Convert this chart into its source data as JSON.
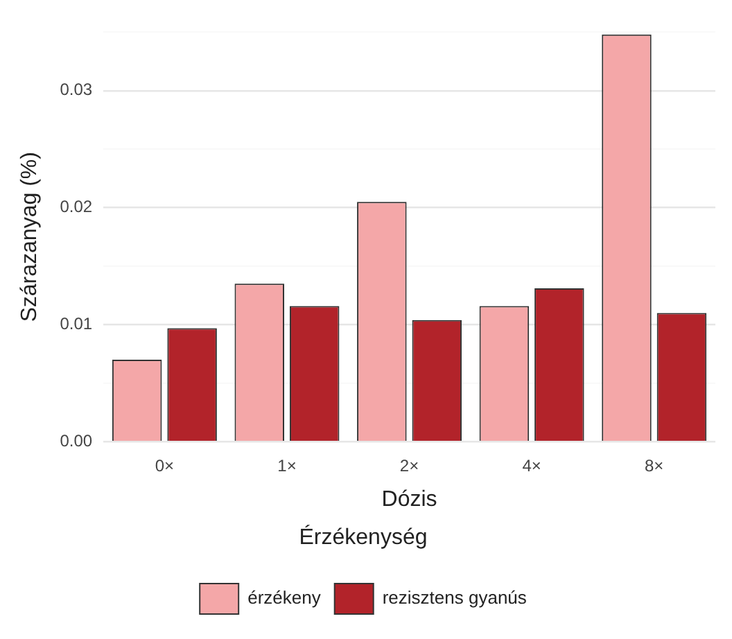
{
  "chart_data": {
    "type": "bar",
    "xlabel": "Dózis",
    "ylabel": "Szárazanyag (%)",
    "legend_title": "Érzékenység",
    "categories": [
      "0×",
      "1×",
      "2×",
      "4×",
      "8×"
    ],
    "series": [
      {
        "name": "érzékeny",
        "color": "#f4a7a8",
        "values": [
          0.007,
          0.0135,
          0.0205,
          0.0116,
          0.0348
        ]
      },
      {
        "name": "rezisztens gyanús",
        "color": "#b2232a",
        "values": [
          0.0097,
          0.0116,
          0.0104,
          0.0131,
          0.011
        ]
      }
    ],
    "ylim": [
      0,
      0.035
    ],
    "yticks": [
      {
        "value": 0,
        "label": "0.00"
      },
      {
        "value": 0.005,
        "label": null
      },
      {
        "value": 0.01,
        "label": "0.01"
      },
      {
        "value": 0.015,
        "label": null
      },
      {
        "value": 0.02,
        "label": "0.02"
      },
      {
        "value": 0.025,
        "label": null
      },
      {
        "value": 0.03,
        "label": "0.03"
      },
      {
        "value": 0.035,
        "label": null
      }
    ],
    "grid": "y",
    "legend": "bottom"
  }
}
